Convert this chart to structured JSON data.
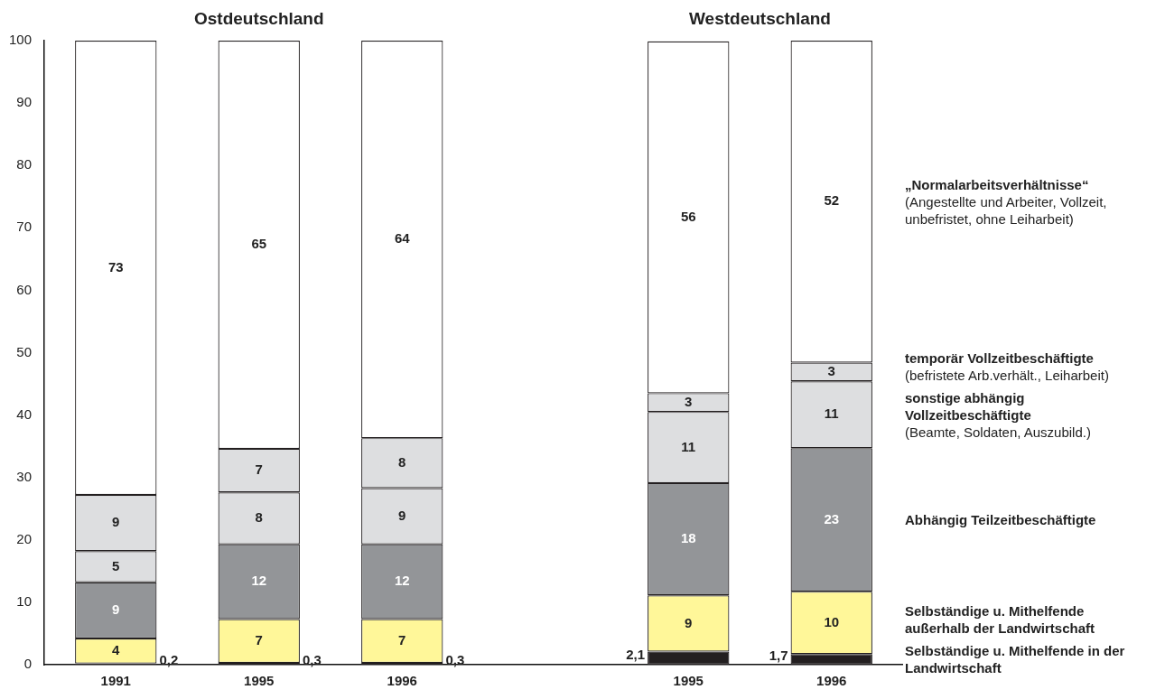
{
  "chart_data": {
    "type": "bar",
    "stacked": true,
    "annotations": [
      "Ostdeutschland",
      "Westdeutschland"
    ],
    "categories": [
      "1991",
      "1995",
      "1996",
      null,
      "1995",
      "1996"
    ],
    "ylim": [
      0,
      100
    ],
    "yticks": [
      0,
      10,
      20,
      30,
      40,
      50,
      60,
      70,
      80,
      90,
      100
    ],
    "grid": false,
    "legend": "right",
    "series": [
      {
        "name": "Selbständige u. Mithelfende in der Landwirtschaft",
        "color": "#231f20",
        "values": [
          0.2,
          0.3,
          0.3,
          null,
          2.1,
          1.7
        ],
        "value_labels": [
          "0,2",
          "0,3",
          "0,3",
          null,
          "2,1",
          "1,7"
        ]
      },
      {
        "name": "Selbständige u. Mithelfende außerhalb der Landwirtschaft",
        "color": "#fff799",
        "values": [
          4,
          7,
          7,
          null,
          9,
          10
        ],
        "value_labels": [
          "4",
          "7",
          "7",
          null,
          "9",
          "10"
        ]
      },
      {
        "name": "Abhängig Teilzeitbeschäftigte",
        "color": "#939598",
        "values": [
          9,
          12,
          12,
          null,
          18,
          23
        ],
        "value_labels": [
          "9",
          "12",
          "12",
          null,
          "18",
          "23"
        ]
      },
      {
        "name": "sonstige abhängig Vollzeitbeschäftigte (Beamte, Soldaten, Auszubild.)",
        "color": "#dddee0",
        "values": [
          5,
          8.3,
          9,
          null,
          11.4,
          10.7
        ],
        "value_labels": [
          "5",
          "8",
          "9",
          null,
          "11",
          "11"
        ]
      },
      {
        "name": "temporär Vollzeitbeschäftigte (befristete Arb.verhält., Leiharbeit)",
        "color": "#dddee0",
        "values": [
          9,
          7,
          8,
          null,
          3,
          3
        ],
        "value_labels": [
          "9",
          "7",
          "8",
          null,
          "3",
          "3"
        ]
      },
      {
        "name": "„Normalarbeitsverhältnisse“ (Angestellte und Arbeiter, Vollzeit, unbefristet, ohne Leiharbeit)",
        "color": "#ffffff",
        "values": [
          72.8,
          65.4,
          63.7,
          null,
          56.4,
          51.6
        ],
        "value_labels": [
          "73",
          "65",
          "64",
          null,
          "56",
          "52"
        ]
      }
    ]
  }
}
